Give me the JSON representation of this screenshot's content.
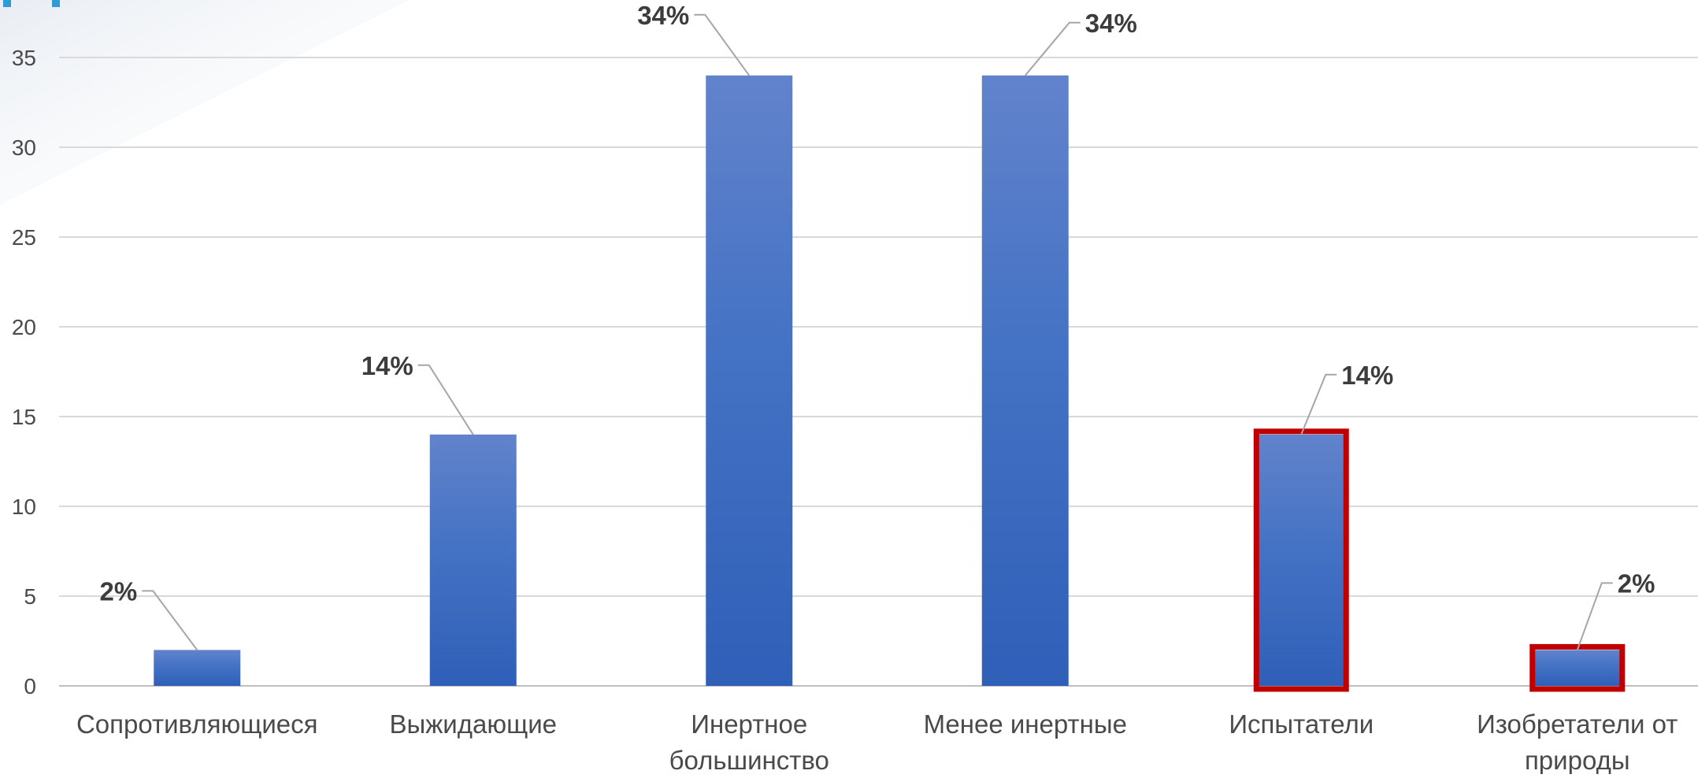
{
  "chart_data": {
    "type": "bar",
    "categories": [
      "Сопротивляющиеся",
      "Выжидающие",
      "Инертное большинство",
      "Менее инертные",
      "Испытатели",
      "Изобретатели от природы"
    ],
    "category_lines": [
      [
        "Сопротивляющиеся"
      ],
      [
        "Выжидающие"
      ],
      [
        "Инертное",
        "большинство"
      ],
      [
        "Менее инертные"
      ],
      [
        "Испытатели"
      ],
      [
        "Изобретатели от",
        "природы"
      ]
    ],
    "values": [
      2,
      14,
      34,
      34,
      14,
      2
    ],
    "data_labels": [
      "2%",
      "14%",
      "34%",
      "34%",
      "14%",
      "2%"
    ],
    "highlighted": [
      false,
      false,
      false,
      false,
      true,
      true
    ],
    "title": "",
    "xlabel": "",
    "ylabel": "",
    "ylim": [
      0,
      35
    ],
    "yticks": [
      0,
      5,
      10,
      15,
      20,
      25,
      30,
      35
    ],
    "grid": true,
    "legend": "none",
    "colors": {
      "bar_top": "#6283cc",
      "bar_mid": "#4472c4",
      "bar_bottom": "#2f5fb8",
      "highlight_border": "#c00000",
      "accent": "#2e9ad6"
    }
  }
}
